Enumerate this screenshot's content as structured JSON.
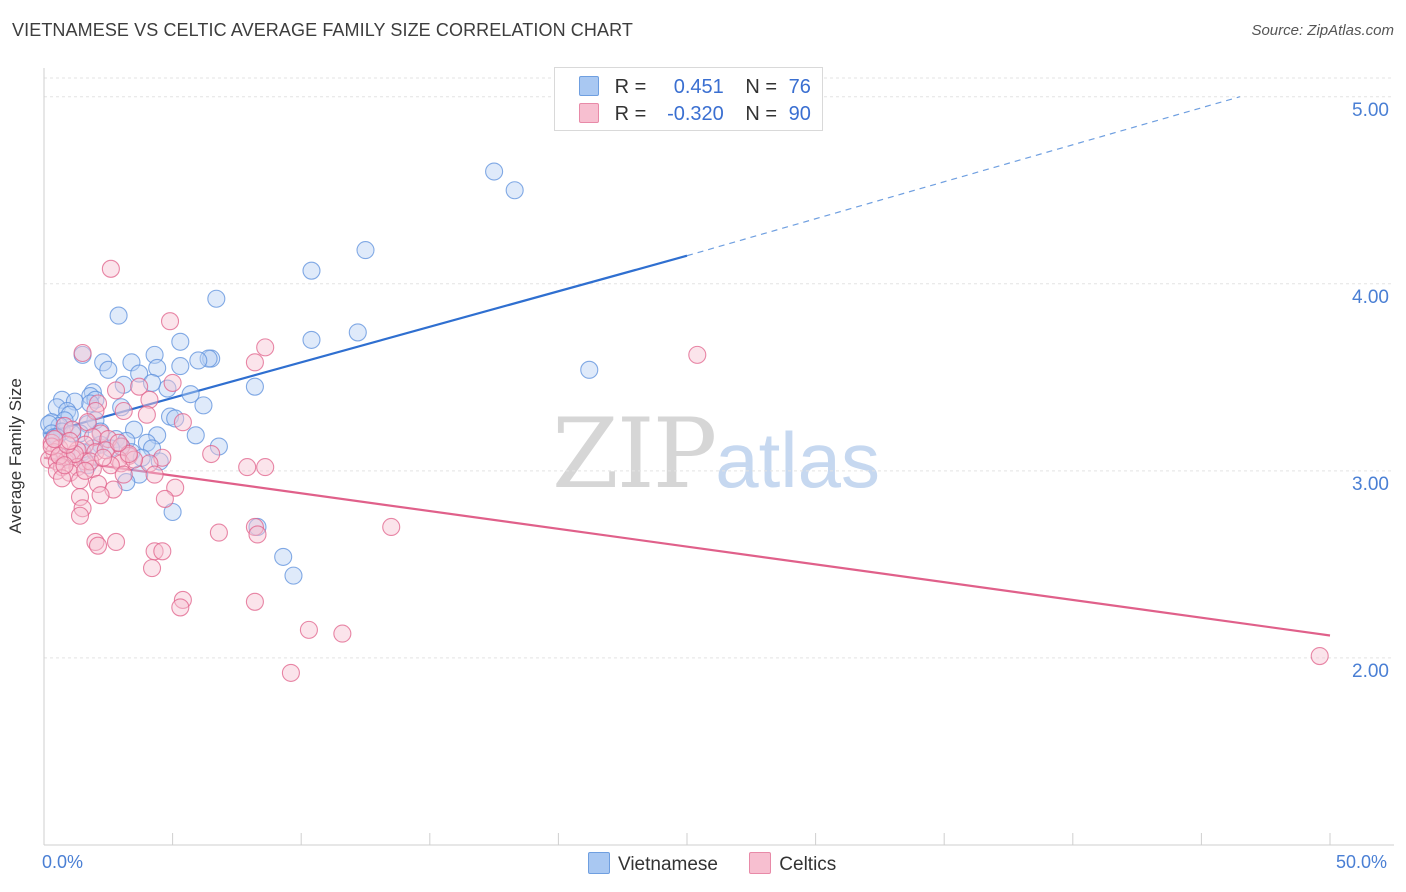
{
  "title": "VIETNAMESE VS CELTIC AVERAGE FAMILY SIZE CORRELATION CHART",
  "source": "Source: ZipAtlas.com",
  "watermark": {
    "zip": "ZIP",
    "atlas": "atlas"
  },
  "legend": {
    "rows": [
      {
        "r_label": "R =",
        "r_value": "0.451",
        "n_label": "N =",
        "n_value": "76",
        "color": "#a9c8f2",
        "border": "#6f9fe0"
      },
      {
        "r_label": "R =",
        "r_value": "-0.320",
        "n_label": "N =",
        "n_value": "90",
        "color": "#f7bfd0",
        "border": "#e88aa8"
      }
    ]
  },
  "bottom_legend": [
    {
      "label": "Vietnamese",
      "color": "#a9c8f2",
      "border": "#6f9fe0"
    },
    {
      "label": "Celtics",
      "color": "#f7bfd0",
      "border": "#e88aa8"
    }
  ],
  "chart_data": {
    "type": "scatter",
    "title": "VIETNAMESE VS CELTIC AVERAGE FAMILY SIZE CORRELATION CHART",
    "xlabel": "",
    "ylabel": "Average Family Size",
    "xlim": [
      0,
      50
    ],
    "ylim": [
      1.0,
      5.1
    ],
    "x_tick_labels": {
      "min": "0.0%",
      "max": "50.0%"
    },
    "y_ticks": [
      {
        "value": 5.0,
        "label": "5.00"
      },
      {
        "value": 4.0,
        "label": "4.00"
      },
      {
        "value": 3.0,
        "label": "3.00"
      },
      {
        "value": 2.0,
        "label": "2.00"
      }
    ],
    "series": [
      {
        "name": "Vietnamese",
        "color": "#5b8fdc",
        "fill": "#b8d0f3",
        "r": 0.451,
        "n": 76,
        "trend": {
          "x0": 0,
          "y0": 3.2,
          "x1": 25,
          "y1": 4.15,
          "dash_to_x": 46.5,
          "dash_to_y": 5.0
        },
        "points": [
          [
            17.5,
            4.6
          ],
          [
            18.3,
            4.5
          ],
          [
            12.5,
            4.18
          ],
          [
            10.4,
            4.07
          ],
          [
            6.7,
            3.92
          ],
          [
            2.9,
            3.83
          ],
          [
            10.4,
            3.7
          ],
          [
            12.2,
            3.74
          ],
          [
            5.3,
            3.69
          ],
          [
            4.3,
            3.62
          ],
          [
            1.5,
            3.62
          ],
          [
            2.3,
            3.58
          ],
          [
            3.4,
            3.58
          ],
          [
            6.5,
            3.6
          ],
          [
            6.4,
            3.6
          ],
          [
            6.0,
            3.59
          ],
          [
            4.4,
            3.55
          ],
          [
            5.3,
            3.56
          ],
          [
            2.5,
            3.54
          ],
          [
            3.7,
            3.52
          ],
          [
            21.2,
            3.54
          ],
          [
            8.2,
            3.45
          ],
          [
            3.1,
            3.46
          ],
          [
            4.8,
            3.44
          ],
          [
            4.2,
            3.47
          ],
          [
            1.9,
            3.42
          ],
          [
            1.8,
            3.4
          ],
          [
            5.7,
            3.41
          ],
          [
            2.0,
            3.38
          ],
          [
            0.7,
            3.38
          ],
          [
            1.2,
            3.37
          ],
          [
            1.8,
            3.36
          ],
          [
            3.0,
            3.34
          ],
          [
            6.2,
            3.35
          ],
          [
            0.5,
            3.34
          ],
          [
            0.9,
            3.32
          ],
          [
            1.0,
            3.3
          ],
          [
            4.9,
            3.29
          ],
          [
            5.1,
            3.28
          ],
          [
            0.8,
            3.27
          ],
          [
            2.0,
            3.27
          ],
          [
            0.3,
            3.26
          ],
          [
            1.7,
            3.25
          ],
          [
            0.6,
            3.24
          ],
          [
            0.2,
            3.25
          ],
          [
            3.5,
            3.22
          ],
          [
            0.7,
            3.21
          ],
          [
            2.2,
            3.21
          ],
          [
            5.9,
            3.19
          ],
          [
            0.3,
            3.2
          ],
          [
            1.4,
            3.2
          ],
          [
            0.4,
            3.18
          ],
          [
            4.4,
            3.19
          ],
          [
            2.8,
            3.17
          ],
          [
            3.2,
            3.16
          ],
          [
            4.0,
            3.15
          ],
          [
            1.1,
            3.2
          ],
          [
            2.2,
            3.14
          ],
          [
            3.0,
            3.13
          ],
          [
            6.8,
            3.13
          ],
          [
            1.9,
            3.12
          ],
          [
            4.2,
            3.12
          ],
          [
            3.4,
            3.1
          ],
          [
            0.5,
            3.18
          ],
          [
            2.6,
            3.12
          ],
          [
            1.5,
            3.1
          ],
          [
            0.8,
            3.07
          ],
          [
            3.8,
            3.07
          ],
          [
            4.5,
            3.05
          ],
          [
            1.7,
            3.03
          ],
          [
            3.7,
            2.98
          ],
          [
            3.2,
            2.94
          ],
          [
            5.0,
            2.78
          ],
          [
            8.3,
            2.7
          ],
          [
            9.3,
            2.54
          ],
          [
            9.7,
            2.44
          ]
        ]
      },
      {
        "name": "Celtics",
        "color": "#e0608a",
        "fill": "#f7c3d3",
        "r": -0.32,
        "n": 90,
        "trend": {
          "x0": 0,
          "y0": 3.07,
          "x1": 50,
          "y1": 2.12
        },
        "points": [
          [
            2.6,
            4.08
          ],
          [
            4.9,
            3.8
          ],
          [
            1.5,
            3.63
          ],
          [
            8.6,
            3.66
          ],
          [
            8.2,
            3.58
          ],
          [
            25.4,
            3.62
          ],
          [
            3.7,
            3.45
          ],
          [
            5.0,
            3.47
          ],
          [
            2.8,
            3.43
          ],
          [
            4.1,
            3.38
          ],
          [
            2.1,
            3.36
          ],
          [
            2.0,
            3.32
          ],
          [
            3.1,
            3.32
          ],
          [
            4.0,
            3.3
          ],
          [
            5.4,
            3.26
          ],
          [
            1.7,
            3.26
          ],
          [
            0.8,
            3.24
          ],
          [
            1.1,
            3.22
          ],
          [
            2.2,
            3.2
          ],
          [
            1.9,
            3.18
          ],
          [
            0.3,
            3.15
          ],
          [
            2.5,
            3.17
          ],
          [
            1.6,
            3.14
          ],
          [
            3.0,
            3.13
          ],
          [
            0.6,
            3.12
          ],
          [
            1.3,
            3.11
          ],
          [
            6.5,
            3.09
          ],
          [
            2.0,
            3.1
          ],
          [
            0.4,
            3.1
          ],
          [
            3.3,
            3.08
          ],
          [
            4.6,
            3.07
          ],
          [
            1.1,
            3.07
          ],
          [
            0.9,
            3.06
          ],
          [
            0.2,
            3.06
          ],
          [
            2.9,
            3.06
          ],
          [
            1.6,
            3.05
          ],
          [
            3.0,
            3.04
          ],
          [
            4.1,
            3.04
          ],
          [
            0.5,
            3.05
          ],
          [
            7.9,
            3.02
          ],
          [
            8.6,
            3.02
          ],
          [
            2.6,
            3.03
          ],
          [
            0.7,
            3.02
          ],
          [
            1.3,
            3.02
          ],
          [
            1.9,
            3.01
          ],
          [
            0.5,
            3.0
          ],
          [
            1.0,
            2.99
          ],
          [
            4.3,
            2.98
          ],
          [
            3.1,
            2.98
          ],
          [
            0.7,
            2.96
          ],
          [
            1.4,
            2.95
          ],
          [
            2.1,
            2.93
          ],
          [
            2.7,
            2.9
          ],
          [
            5.1,
            2.91
          ],
          [
            2.2,
            2.87
          ],
          [
            1.4,
            2.86
          ],
          [
            4.7,
            2.85
          ],
          [
            1.5,
            2.8
          ],
          [
            1.4,
            2.76
          ],
          [
            13.5,
            2.7
          ],
          [
            8.2,
            2.7
          ],
          [
            6.8,
            2.67
          ],
          [
            8.3,
            2.66
          ],
          [
            2.8,
            2.62
          ],
          [
            2.0,
            2.62
          ],
          [
            2.1,
            2.6
          ],
          [
            4.3,
            2.57
          ],
          [
            4.6,
            2.57
          ],
          [
            4.2,
            2.48
          ],
          [
            5.4,
            2.31
          ],
          [
            5.3,
            2.27
          ],
          [
            8.2,
            2.3
          ],
          [
            10.3,
            2.15
          ],
          [
            11.6,
            2.13
          ],
          [
            9.6,
            1.92
          ],
          [
            49.6,
            2.01
          ],
          [
            0.3,
            3.13
          ],
          [
            0.6,
            3.08
          ],
          [
            1.2,
            3.09
          ],
          [
            2.4,
            3.11
          ],
          [
            3.5,
            3.06
          ],
          [
            0.9,
            3.14
          ],
          [
            1.8,
            3.05
          ],
          [
            2.3,
            3.07
          ],
          [
            1.0,
            3.16
          ],
          [
            0.4,
            3.17
          ],
          [
            3.3,
            3.09
          ],
          [
            1.6,
            3.0
          ],
          [
            2.9,
            3.15
          ],
          [
            0.8,
            3.03
          ]
        ]
      }
    ]
  }
}
